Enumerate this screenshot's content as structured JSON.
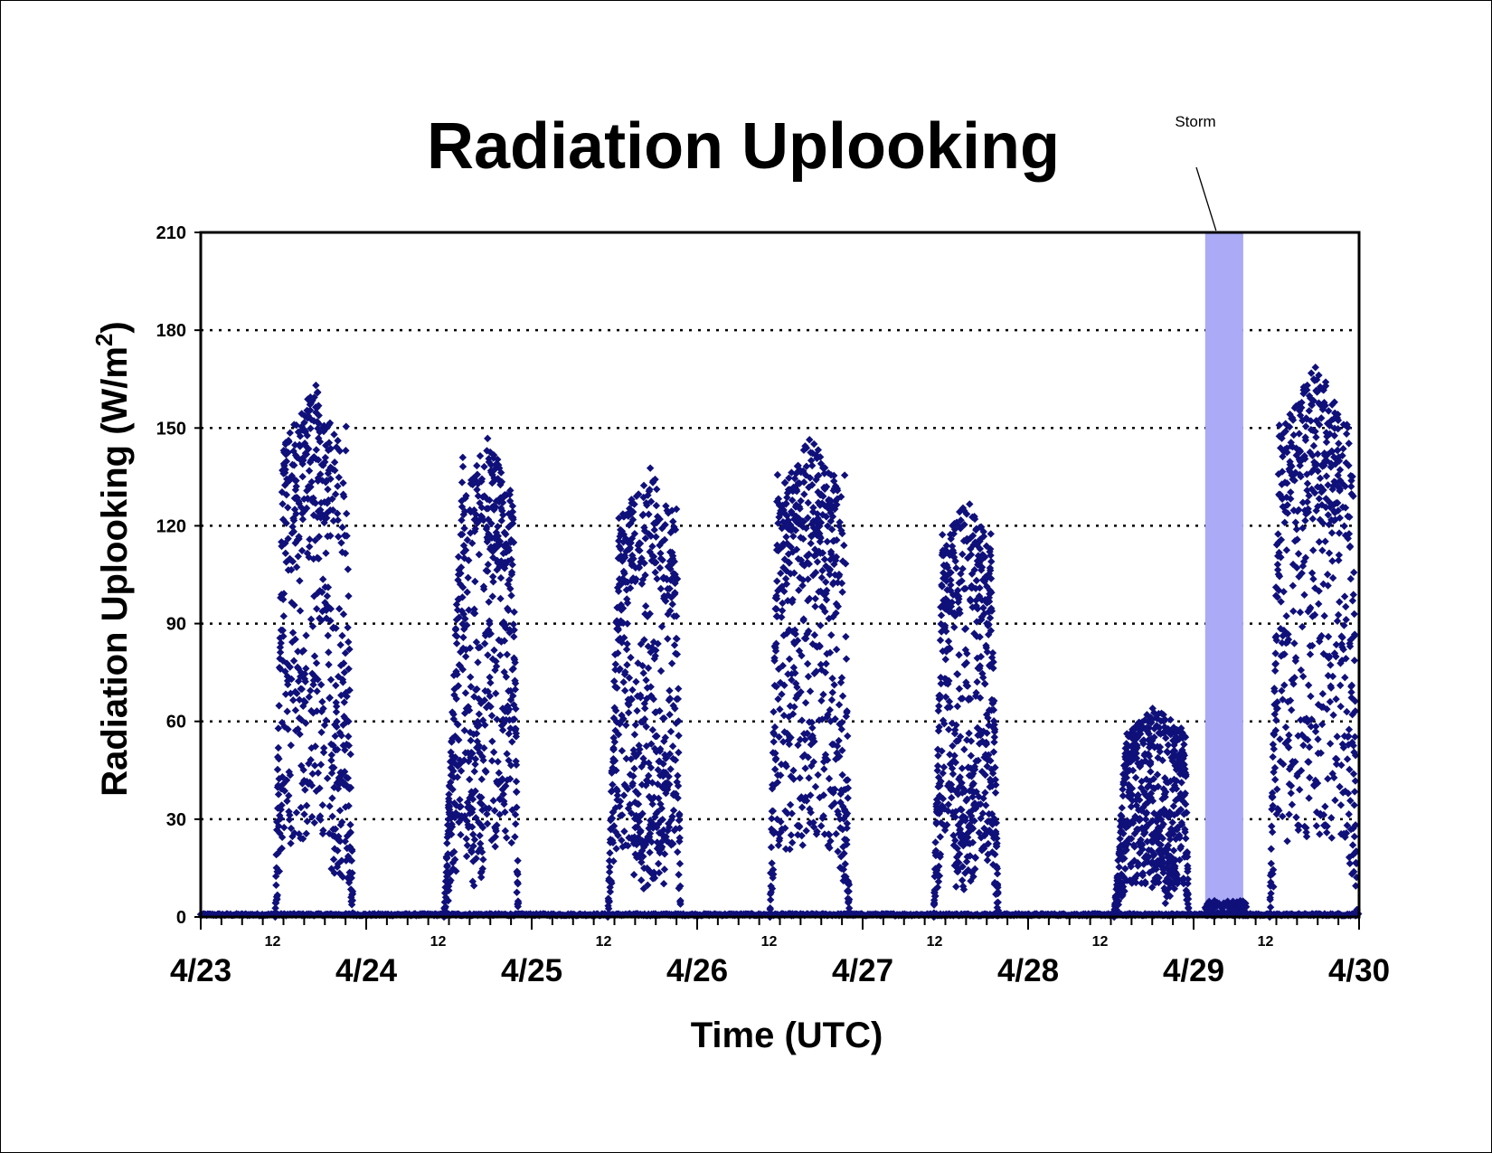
{
  "chart_data": {
    "type": "scatter",
    "title": "Radiation Uplooking",
    "xlabel": "Time (UTC)",
    "ylabel": "Radiation Uplooking (W/m",
    "ylabel_superscript": "2",
    "ylabel_close": ")",
    "ylim": [
      0,
      210
    ],
    "yticks": [
      "0",
      "30",
      "60",
      "90",
      "120",
      "150",
      "180",
      "210"
    ],
    "x_day_labels": [
      "4/23",
      "4/24",
      "4/25",
      "4/26",
      "4/27",
      "4/28",
      "4/29",
      "4/30"
    ],
    "x_midday_label": "12",
    "grid": "dotted horizontal",
    "marker": "diamond",
    "colors": {
      "points": "#10107a",
      "storm_band": "#aaaaf6",
      "axis": "#000000"
    },
    "annotation": {
      "text": "Storm"
    },
    "storm_band_days": [
      6.07,
      6.3
    ],
    "series": [
      {
        "days": [
          {
            "day": 0,
            "start": 0.45,
            "end": 0.92,
            "peak": 165,
            "rise": 0.11,
            "gap": 0.72,
            "gapAfter": 0.74,
            "tail": 0.09
          },
          {
            "day": 1,
            "start": 0.47,
            "end": 0.92,
            "peak": 148,
            "rise": 0.26,
            "gap": 0.3,
            "gapAfter": 0.28,
            "tail": 0.08
          },
          {
            "day": 2,
            "start": 0.46,
            "end": 0.9,
            "peak": 140,
            "rise": 0.17,
            "gap": 0.35,
            "gapAfter": 0.55,
            "tail": 0.06
          },
          {
            "day": 3,
            "start": 0.44,
            "end": 0.92,
            "peak": 148,
            "rise": 0.1,
            "gap": 0.88,
            "gapAfter": 0.9,
            "tail": 0.06
          },
          {
            "day": 4,
            "start": 0.43,
            "end": 0.82,
            "peak": 130,
            "rise": 0.14,
            "gap": 0.32,
            "gapAfter": 0.4,
            "tail": 0.12
          },
          {
            "day": 5,
            "start": 0.52,
            "end": 0.97,
            "peak": 65,
            "rise": 0.18,
            "gap": 0.5,
            "gapAfter": 0.6,
            "tail": 0.05
          },
          {
            "day": 6,
            "start": 0.46,
            "end": 0.99,
            "peak": 170,
            "rise": 0.12,
            "gap": 0.9,
            "gapAfter": 0.92,
            "tail": 0.06
          }
        ]
      }
    ]
  }
}
